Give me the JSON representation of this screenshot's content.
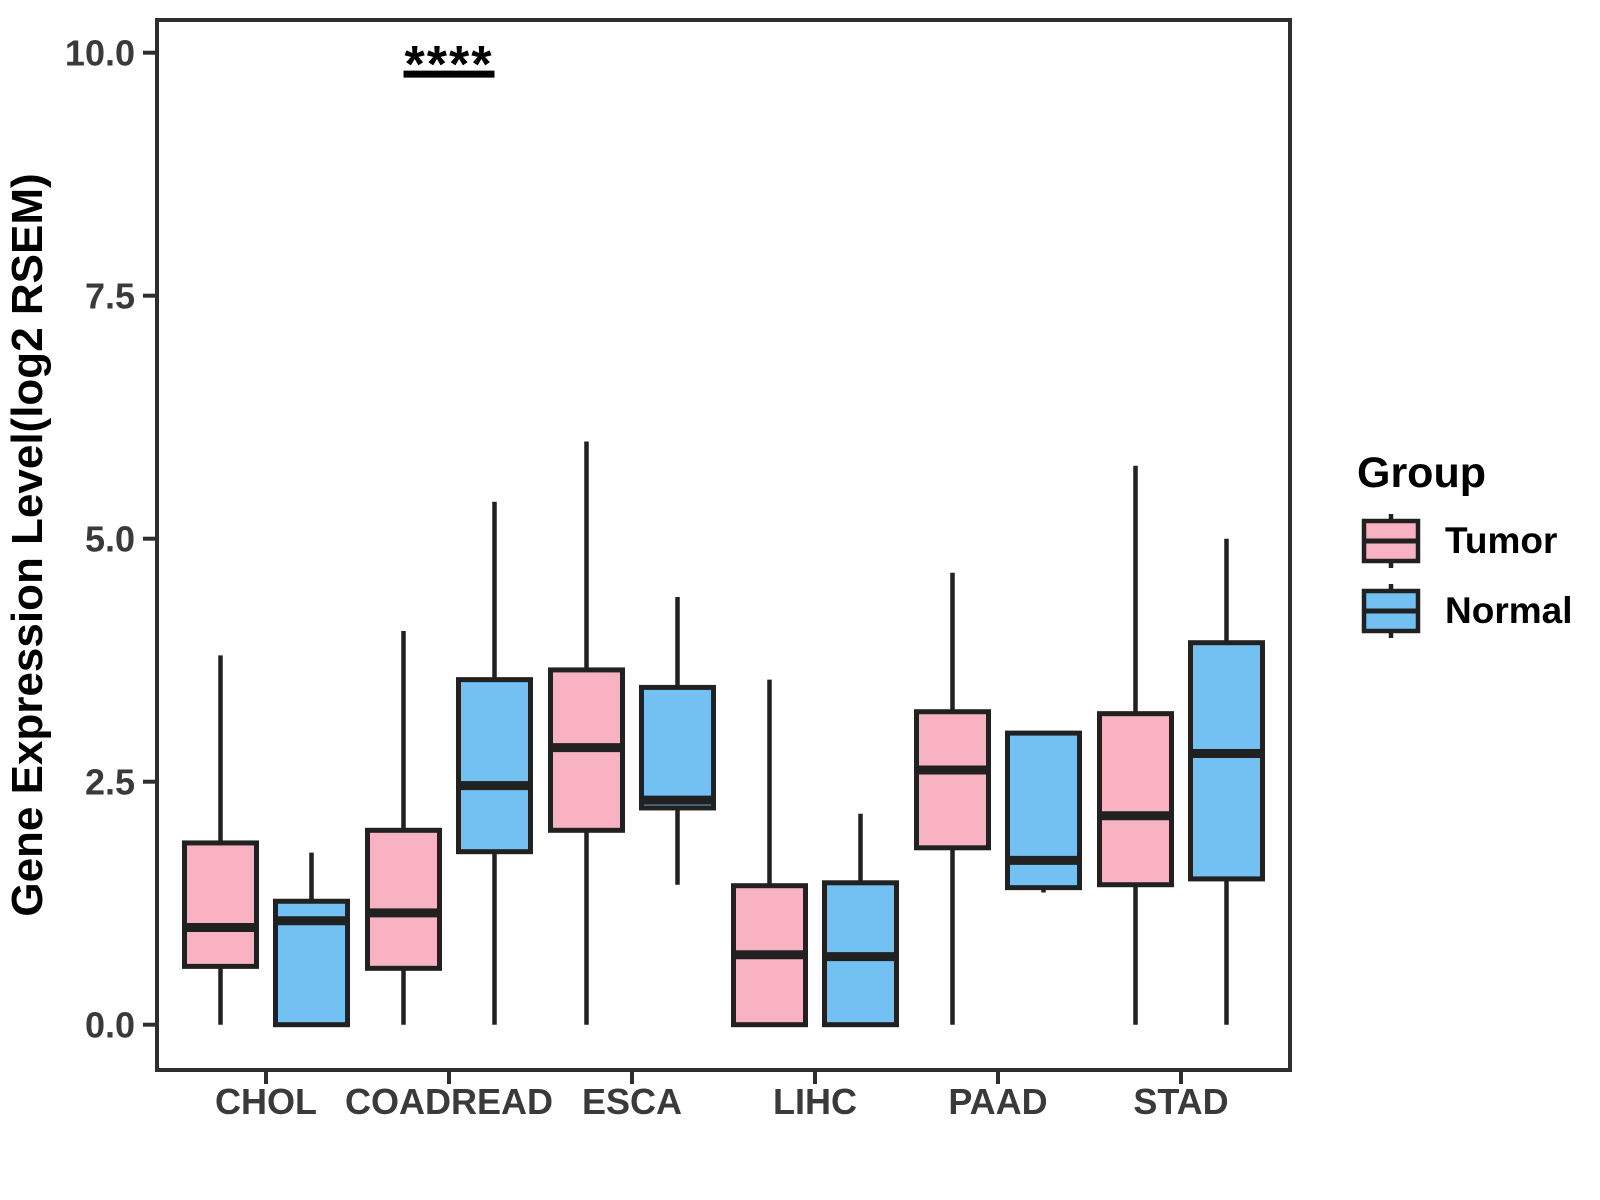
{
  "chart_data": {
    "type": "boxplot",
    "title": "",
    "xlabel": "",
    "ylabel": "Gene Expression Level(log2 RSEM)",
    "ylim": [
      0,
      10
    ],
    "grid": false,
    "y_ticks": [
      {
        "value": 0,
        "label": "0.0"
      },
      {
        "value": 2.5,
        "label": "2.5"
      },
      {
        "value": 5,
        "label": "5.0"
      },
      {
        "value": 7.5,
        "label": "7.5"
      },
      {
        "value": 10,
        "label": "10.0"
      }
    ],
    "categories": [
      "CHOL",
      "COADREAD",
      "ESCA",
      "LIHC",
      "PAAD",
      "STAD"
    ],
    "legend": {
      "title": "Group",
      "position": "right",
      "entries": [
        {
          "label": "Tumor",
          "color": "#F9B2C1"
        },
        {
          "label": "Normal",
          "color": "#72C1F2"
        }
      ]
    },
    "colors": {
      "box_outline": "#212121",
      "panel_border": "#2E2E2E",
      "axis_text": "#3A3A3A",
      "annotation": "#000000"
    },
    "series": [
      {
        "name": "Tumor",
        "color": "#F9B2C1",
        "boxes": [
          {
            "category": "CHOL",
            "whisker_low": 0.0,
            "q1": 0.6,
            "median": 1.0,
            "q3": 1.87,
            "whisker_high": 3.8
          },
          {
            "category": "COADREAD",
            "whisker_low": 0.0,
            "q1": 0.58,
            "median": 1.15,
            "q3": 2.0,
            "whisker_high": 4.05
          },
          {
            "category": "ESCA",
            "whisker_low": 0.0,
            "q1": 2.0,
            "median": 2.85,
            "q3": 3.65,
            "whisker_high": 6.0
          },
          {
            "category": "LIHC",
            "whisker_low": 0.0,
            "q1": 0.0,
            "median": 0.72,
            "q3": 1.43,
            "whisker_high": 3.55
          },
          {
            "category": "PAAD",
            "whisker_low": 0.0,
            "q1": 1.82,
            "median": 2.62,
            "q3": 3.22,
            "whisker_high": 4.65
          },
          {
            "category": "STAD",
            "whisker_low": 0.0,
            "q1": 1.44,
            "median": 2.15,
            "q3": 3.2,
            "whisker_high": 5.75
          }
        ]
      },
      {
        "name": "Normal",
        "color": "#72C1F2",
        "boxes": [
          {
            "category": "CHOL",
            "whisker_low": 0.0,
            "q1": 0.0,
            "median": 1.07,
            "q3": 1.27,
            "whisker_high": 1.77
          },
          {
            "category": "COADREAD",
            "whisker_low": 0.0,
            "q1": 1.78,
            "median": 2.46,
            "q3": 3.55,
            "whisker_high": 5.38
          },
          {
            "category": "ESCA",
            "whisker_low": 1.44,
            "q1": 2.23,
            "median": 2.31,
            "q3": 3.47,
            "whisker_high": 4.4
          },
          {
            "category": "LIHC",
            "whisker_low": 0.0,
            "q1": 0.0,
            "median": 0.7,
            "q3": 1.46,
            "whisker_high": 2.17
          },
          {
            "category": "PAAD",
            "whisker_low": 1.36,
            "q1": 1.41,
            "median": 1.69,
            "q3": 3.0,
            "whisker_high": 3.0
          },
          {
            "category": "STAD",
            "whisker_low": 0.0,
            "q1": 1.5,
            "median": 2.79,
            "q3": 3.93,
            "whisker_high": 5.0
          }
        ]
      }
    ],
    "annotation": {
      "text": "****",
      "category": "COADREAD",
      "line_y": 9.78
    }
  }
}
